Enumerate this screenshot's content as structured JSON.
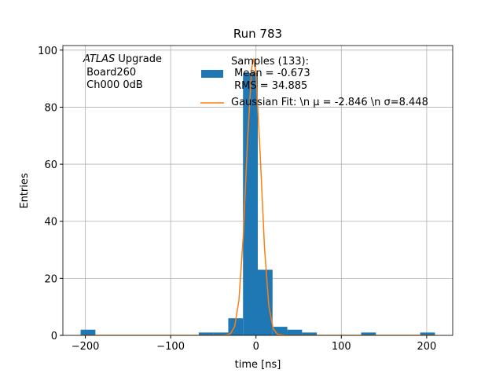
{
  "chart_data": {
    "type": "histogram",
    "title": "Run 783",
    "xlabel": "time [ns]",
    "ylabel": "Entries",
    "annotation": {
      "italic": "ATLAS",
      "rest": " Upgrade",
      "lines": [
        " Board260",
        " Ch000 0dB"
      ]
    },
    "bins": [
      -205.5,
      -188.2,
      -170.9,
      -153.6,
      -136.3,
      -119.0,
      -101.7,
      -84.4,
      -67.1,
      -49.8,
      -32.5,
      -15.2,
      2.1,
      19.4,
      36.7,
      54.0,
      71.3,
      88.6,
      105.9,
      123.2,
      140.5,
      157.8,
      175.1,
      192.4,
      209.7
    ],
    "series": [
      {
        "name": "Samples (133):\n Mean = -0.673\n RMS = 34.885",
        "color": "#1f77b4",
        "values": [
          2,
          0,
          0,
          0,
          0,
          0,
          0,
          0,
          1,
          1,
          6,
          92,
          23,
          3,
          2,
          1,
          0,
          0,
          0,
          1,
          0,
          0,
          0,
          1
        ]
      },
      {
        "name": "Gaussian Fit: \\n μ = -2.846 \\n σ=8.448",
        "color": "#ff7f0e",
        "type": "line",
        "x": [
          -205,
          -40,
          -35,
          -30,
          -25,
          -20,
          -15,
          -10,
          -5,
          -2.846,
          0,
          5,
          10,
          15,
          20,
          25,
          35,
          210
        ],
        "values": [
          0,
          0,
          0.1,
          0.55,
          3.1,
          12.3,
          34.5,
          67.7,
          93.9,
          97,
          91.7,
          63.0,
          30.5,
          10.4,
          2.5,
          0.4,
          0,
          0
        ]
      }
    ],
    "xlim": [
      -226.3,
      230.5
    ],
    "ylim": [
      0,
      101.6
    ],
    "xticks": [
      {
        "value": -200,
        "label": "−200"
      },
      {
        "value": -100,
        "label": "−100"
      },
      0,
      100,
      200
    ],
    "yticks": [
      0,
      20,
      40,
      60,
      80,
      100
    ],
    "grid": true
  }
}
